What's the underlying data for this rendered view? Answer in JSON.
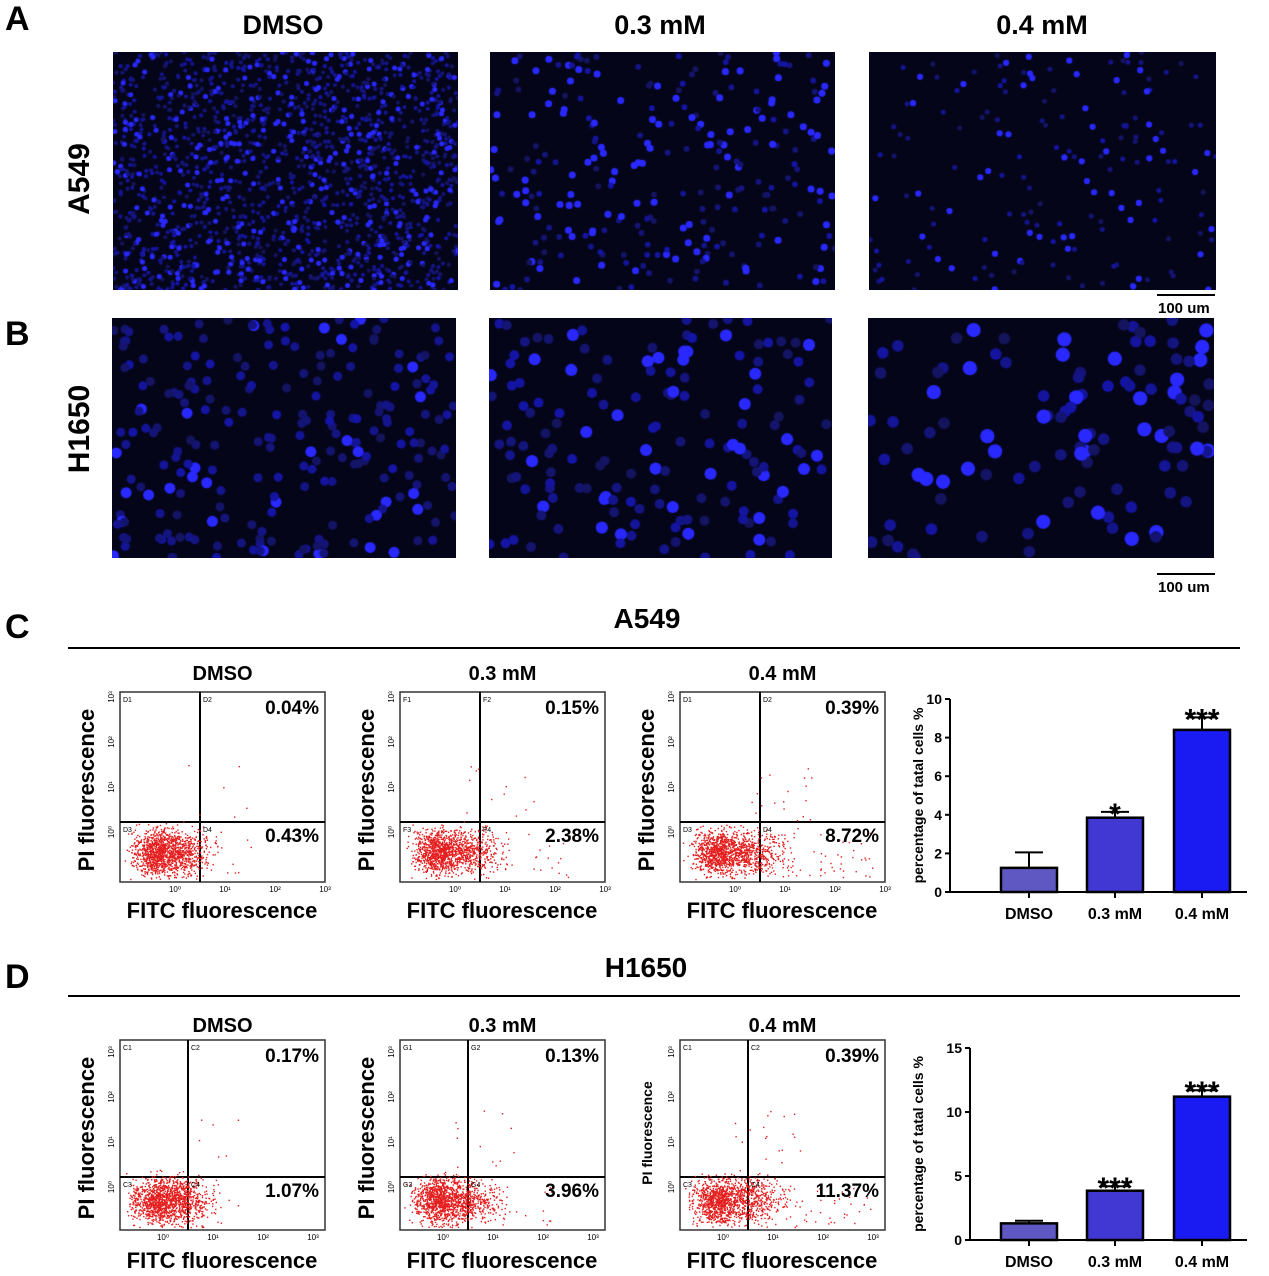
{
  "panels": {
    "a": "A",
    "b": "B",
    "c": "C",
    "d": "D"
  },
  "conditions": [
    "DMSO",
    "0.3 mM",
    "0.4 mM"
  ],
  "cell_lines": {
    "a549": "A549",
    "h1650": "H1650"
  },
  "scale_bar": "100 um",
  "flow": {
    "x_label": "FITC fluorescence",
    "y_label": "PI fluorescence",
    "x_ticks": [
      "10⁰",
      "10¹",
      "10²",
      "10³"
    ],
    "y_ticks": [
      "10⁰",
      "10¹",
      "10²",
      "10³"
    ],
    "c": [
      {
        "title": "DMSO",
        "quadrants": [
          "D1",
          "D2",
          "D3",
          "D4"
        ],
        "upper_right": "0.04%",
        "lower_right": "0.43%"
      },
      {
        "title": "0.3 mM",
        "quadrants": [
          "F1",
          "F2",
          "F3",
          "F4"
        ],
        "upper_right": "0.15%",
        "lower_right": "2.38%"
      },
      {
        "title": "0.4 mM",
        "quadrants": [
          "D1",
          "D2",
          "D3",
          "D4"
        ],
        "upper_right": "0.39%",
        "lower_right": "8.72%"
      }
    ],
    "d": [
      {
        "title": "DMSO",
        "quadrants": [
          "C1",
          "C2",
          "C3",
          "C4"
        ],
        "upper_right": "0.17%",
        "lower_right": "1.07%"
      },
      {
        "title": "0.3 mM",
        "quadrants": [
          "G1",
          "G2",
          "G3",
          "G4"
        ],
        "upper_right": "0.13%",
        "lower_right": "3.96%"
      },
      {
        "title": "0.4 mM",
        "quadrants": [
          "C1",
          "C2",
          "C3",
          "C4"
        ],
        "upper_right": "0.39%",
        "lower_right": "11.37%"
      }
    ]
  },
  "chart_data": [
    {
      "type": "bar",
      "title": "A549",
      "ylabel": "percentage of tatal cells %",
      "categories": [
        "DMSO",
        "0.3 mM",
        "0.4 mM"
      ],
      "values": [
        1.25,
        3.85,
        8.4
      ],
      "errors": [
        0.8,
        0.3,
        0.65
      ],
      "significance": [
        "",
        "*",
        "***"
      ],
      "ylim": [
        0,
        10
      ],
      "yticks": [
        0,
        2,
        4,
        6,
        8,
        10
      ],
      "colors": [
        "#5f58c2",
        "#4137d2",
        "#1a1af2"
      ]
    },
    {
      "type": "bar",
      "title": "H1650",
      "ylabel": "percentage of tatal cells %",
      "categories": [
        "DMSO",
        "0.3 mM",
        "0.4 mM"
      ],
      "values": [
        1.3,
        3.85,
        11.2
      ],
      "errors": [
        0.2,
        0.35,
        0.5
      ],
      "significance": [
        "",
        "***",
        "***"
      ],
      "ylim": [
        0,
        15
      ],
      "yticks": [
        0,
        5,
        10,
        15
      ],
      "colors": [
        "#5f58c2",
        "#4137d2",
        "#1a1af2"
      ]
    }
  ]
}
